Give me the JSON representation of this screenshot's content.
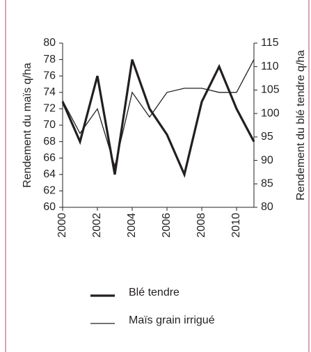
{
  "chart_data": {
    "type": "line",
    "y_label": "Rendement du maïs q/ha",
    "y2_label": "Rendement du blé tendre q/ha",
    "x": [
      2000,
      2001,
      2002,
      2003,
      2004,
      2005,
      2006,
      2007,
      2008,
      2009,
      2010,
      2011
    ],
    "xlim": [
      2000,
      2011
    ],
    "xticks": [
      2000,
      2002,
      2004,
      2006,
      2008,
      2010
    ],
    "ylim": [
      60,
      80
    ],
    "yticks": [
      60,
      62,
      64,
      66,
      68,
      70,
      72,
      74,
      76,
      78,
      80
    ],
    "y2lim": [
      80,
      115
    ],
    "y2ticks": [
      80,
      85,
      90,
      95,
      100,
      105,
      110,
      115
    ],
    "grid": false,
    "series": [
      {
        "name": "Blé tendre",
        "color": "#231f20",
        "axis": "y2",
        "width": 3.2,
        "values": [
          102.5,
          94,
          108,
          87,
          111.5,
          101,
          95.5,
          87,
          102.5,
          110,
          101,
          94
        ]
      },
      {
        "name": "Maïs grain irrigué",
        "color": "#231f20",
        "width": 1.3,
        "values": [
          73,
          69,
          72,
          65,
          74,
          71,
          74,
          74.5,
          74.5,
          74,
          74,
          78
        ]
      }
    ]
  }
}
